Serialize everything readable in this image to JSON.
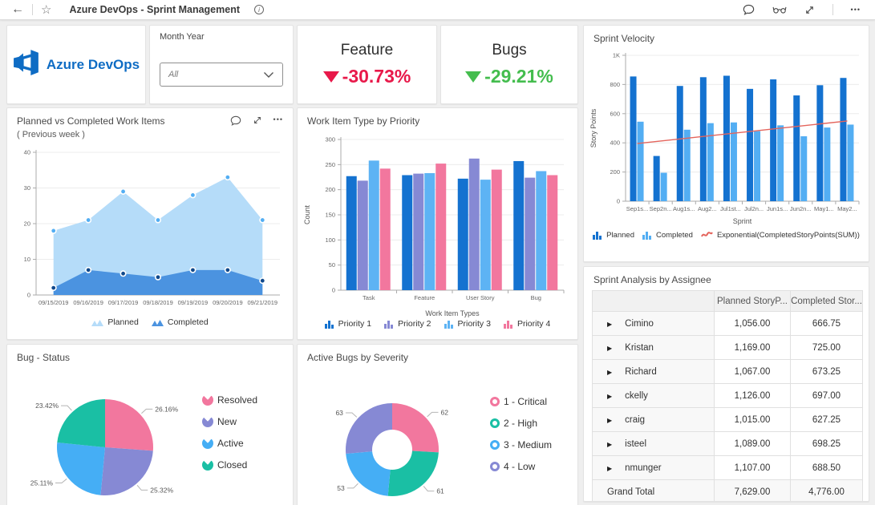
{
  "topbar": {
    "back": "←",
    "star": "☆",
    "title": "Azure DevOps - Sprint Management",
    "info": "i",
    "ellipsis": "•••"
  },
  "logo": {
    "text": "Azure DevOps"
  },
  "filter": {
    "label": "Month Year",
    "value": "All"
  },
  "kpis": [
    {
      "title": "Feature",
      "value": "-30.73%",
      "direction": "down",
      "color": "#e8194a"
    },
    {
      "title": "Bugs",
      "value": "-29.21%",
      "direction": "down",
      "color": "#44bd4e"
    }
  ],
  "cards": {
    "sprint_velocity": {
      "title": "Sprint Velocity"
    },
    "planned_completed": {
      "title": "Planned vs Completed Work Items",
      "subtitle": "( Previous week )"
    },
    "work_item_priority": {
      "title": "Work Item Type by Priority"
    },
    "bug_status": {
      "title": "Bug - Status"
    },
    "bugs_severity": {
      "title": "Active Bugs by Severity"
    },
    "sprint_analysis": {
      "title": "Sprint Analysis by Assignee"
    }
  },
  "chart_data": [
    {
      "id": "sprint_velocity",
      "type": "bar",
      "title": "Sprint Velocity",
      "categories": [
        "Sep1s...",
        "Sep2n...",
        "Aug1s...",
        "Aug2...",
        "Jul1st...",
        "Jul2n...",
        "Jun1s...",
        "Jun2n...",
        "May1...",
        "May2..."
      ],
      "series": [
        {
          "name": "Planned",
          "color": "#1472d0",
          "values": [
            855,
            310,
            790,
            850,
            860,
            770,
            835,
            725,
            795,
            845
          ]
        },
        {
          "name": "Completed",
          "color": "#53aef3",
          "values": [
            545,
            195,
            490,
            535,
            540,
            480,
            520,
            445,
            505,
            525
          ]
        }
      ],
      "trend": {
        "name": "Exponential(CompletedStoryPoints(SUM))",
        "color": "#e4645c",
        "start": 395,
        "end": 550
      },
      "xlabel": "Sprint",
      "ylabel": "Story Points",
      "ylim": [
        0,
        1000
      ],
      "yticks": [
        {
          "v": 0,
          "label": "0"
        },
        {
          "v": 200,
          "label": "200"
        },
        {
          "v": 400,
          "label": "400"
        },
        {
          "v": 600,
          "label": "600"
        },
        {
          "v": 800,
          "label": "800"
        },
        {
          "v": 1000,
          "label": "1K"
        }
      ],
      "grid": true,
      "legend_position": "bottom"
    },
    {
      "id": "planned_completed",
      "type": "area",
      "title": "Planned vs Completed Work Items",
      "subtitle": "( Previous week )",
      "x": [
        "09/15/2019",
        "09/16/2019",
        "09/17/2019",
        "09/18/2019",
        "09/19/2019",
        "09/20/2019",
        "09/21/2019"
      ],
      "series": [
        {
          "name": "Planned",
          "color": "#b5dcf9",
          "marker": "#53aef3",
          "values": [
            18,
            21,
            29,
            21,
            28,
            33,
            21
          ]
        },
        {
          "name": "Completed",
          "color": "#4b93e0",
          "marker": "#10498c",
          "values": [
            2,
            7,
            6,
            5,
            7,
            7,
            4
          ]
        }
      ],
      "xlabel": "",
      "ylabel": "",
      "ylim": [
        0,
        40
      ],
      "yticks": [
        {
          "v": 0,
          "label": "0"
        },
        {
          "v": 10,
          "label": "10"
        },
        {
          "v": 20,
          "label": "20"
        },
        {
          "v": 30,
          "label": "30"
        },
        {
          "v": 40,
          "label": "40"
        }
      ],
      "grid": true,
      "legend_position": "bottom"
    },
    {
      "id": "work_item_priority",
      "type": "bar",
      "title": "Work Item Type by Priority",
      "categories": [
        "Task",
        "Feature",
        "User Story",
        "Bug"
      ],
      "series": [
        {
          "name": "Priority 1",
          "color": "#1472d0",
          "values": [
            227,
            229,
            222,
            257
          ]
        },
        {
          "name": "Priority 2",
          "color": "#8689d4",
          "values": [
            218,
            232,
            262,
            224
          ]
        },
        {
          "name": "Priority 3",
          "color": "#5db3f4",
          "values": [
            258,
            233,
            220,
            237
          ]
        },
        {
          "name": "Priority 4",
          "color": "#f2779e",
          "values": [
            242,
            252,
            240,
            229
          ]
        }
      ],
      "xlabel": "Work Item Types",
      "ylabel": "Count",
      "ylim": [
        0,
        300
      ],
      "yticks": [
        {
          "v": 0,
          "label": "0"
        },
        {
          "v": 50,
          "label": "50"
        },
        {
          "v": 100,
          "label": "100"
        },
        {
          "v": 150,
          "label": "150"
        },
        {
          "v": 200,
          "label": "200"
        },
        {
          "v": 250,
          "label": "250"
        },
        {
          "v": 300,
          "label": "300"
        }
      ],
      "grid": true,
      "legend_position": "bottom"
    },
    {
      "id": "bug_status",
      "type": "pie",
      "title": "Bug - Status",
      "slices": [
        {
          "label": "Resolved",
          "value": 26.16,
          "display": "26.16%",
          "color": "#f2779e"
        },
        {
          "label": "New",
          "value": 25.32,
          "display": "25.32%",
          "color": "#8689d4"
        },
        {
          "label": "Active",
          "value": 25.11,
          "display": "25.11%",
          "color": "#45aef5"
        },
        {
          "label": "Closed",
          "value": 23.42,
          "display": "23.42%",
          "color": "#1abfa4"
        }
      ],
      "legend_position": "right"
    },
    {
      "id": "bugs_severity",
      "type": "donut",
      "title": "Active Bugs by Severity",
      "slices": [
        {
          "label": "1 - Critical",
          "value": 62,
          "display": "62",
          "color": "#f2779e"
        },
        {
          "label": "2 - High",
          "value": 61,
          "display": "61",
          "color": "#1abfa4"
        },
        {
          "label": "3 - Medium",
          "value": 53,
          "display": "53",
          "color": "#45aef5"
        },
        {
          "label": "4 - Low",
          "value": 63,
          "display": "63",
          "color": "#8689d4"
        }
      ],
      "legend_position": "right"
    }
  ],
  "table": {
    "title": "Sprint Analysis by Assignee",
    "columns": [
      "",
      "Planned StoryP...",
      "Completed Stor..."
    ],
    "rows": [
      [
        "Cimino",
        "1,056.00",
        "666.75"
      ],
      [
        "Kristan",
        "1,169.00",
        "725.00"
      ],
      [
        "Richard",
        "1,067.00",
        "673.25"
      ],
      [
        "ckelly",
        "1,126.00",
        "697.00"
      ],
      [
        "craig",
        "1,015.00",
        "627.25"
      ],
      [
        "isteel",
        "1,089.00",
        "698.25"
      ],
      [
        "nmunger",
        "1,107.00",
        "688.50"
      ]
    ],
    "total": [
      "Grand Total",
      "7,629.00",
      "4,776.00"
    ]
  }
}
